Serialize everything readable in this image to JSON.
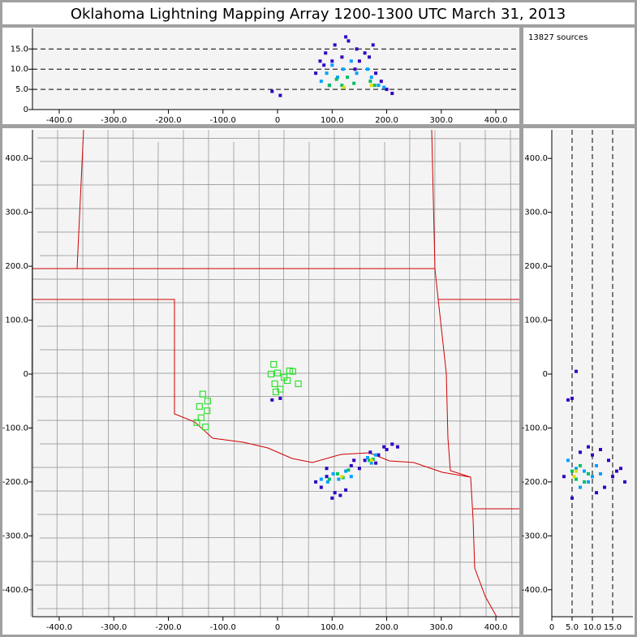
{
  "title": "Oklahoma Lightning Mapping Array   1200-1300 UTC  March 31, 2013",
  "annotation": "13827 sources",
  "chart_data": [
    {
      "type": "scatter",
      "xlim": [
        -449,
        443
      ],
      "ylim": [
        0,
        20.1
      ],
      "xticks": [
        {
          "value": -400,
          "label": "-400.0"
        },
        {
          "value": -300,
          "label": "-300.0"
        },
        {
          "value": -200,
          "label": "-200.0"
        },
        {
          "value": -100,
          "label": "-100.0"
        },
        0,
        {
          "value": 100,
          "label": "100.0"
        },
        {
          "value": 200,
          "label": "200.0"
        },
        {
          "value": 300,
          "label": "300.0"
        },
        {
          "value": 400,
          "label": "400.0"
        }
      ],
      "yticks": [
        0,
        {
          "value": 5,
          "label": "5.0"
        },
        {
          "value": 10,
          "label": "10.0"
        },
        {
          "value": 15,
          "label": "15.0"
        }
      ],
      "grid": "dashed",
      "series": [
        {
          "color": "#3000c0",
          "x": [
            -10,
            5,
            70,
            78,
            88,
            95,
            105,
            118,
            130,
            142,
            150,
            160,
            168,
            180,
            190,
            200,
            210,
            125,
            145,
            85,
            175,
            100
          ],
          "values": [
            4.5,
            3.5,
            9,
            12,
            14,
            6,
            16,
            13,
            17,
            10,
            12,
            14,
            13,
            9,
            7,
            5,
            4,
            18,
            15,
            11,
            16,
            12
          ]
        },
        {
          "color": "#00a0ff",
          "x": [
            80,
            90,
            100,
            110,
            120,
            135,
            145,
            165,
            172,
            185,
            195
          ],
          "values": [
            7,
            9,
            11,
            8,
            10,
            12,
            9,
            10,
            8,
            6,
            5.5
          ]
        },
        {
          "color": "#00c060",
          "x": [
            95,
            108,
            118,
            128,
            140,
            170,
            178
          ],
          "values": [
            6,
            7.5,
            6,
            8,
            6.5,
            7,
            6
          ]
        },
        {
          "color": "#e0e000",
          "x": [
            122,
            172
          ],
          "values": [
            5.5,
            6
          ]
        }
      ]
    },
    {
      "type": "scatter",
      "xlim": [
        -449,
        443
      ],
      "ylim": [
        -450,
        453
      ],
      "xticks": [
        {
          "value": -400,
          "label": "-400.0"
        },
        {
          "value": -300,
          "label": "-300.0"
        },
        {
          "value": -200,
          "label": "-200.0"
        },
        {
          "value": -100,
          "label": "-100.0"
        },
        0,
        {
          "value": 100,
          "label": "100.0"
        },
        {
          "value": 200,
          "label": "200.0"
        },
        {
          "value": 300,
          "label": "300.0"
        },
        {
          "value": 400,
          "label": "400.0"
        }
      ],
      "yticks": [
        {
          "value": -400,
          "label": "-400.0"
        },
        {
          "value": -300,
          "label": "-300.0"
        },
        {
          "value": -200,
          "label": "-200.0"
        },
        {
          "value": -100,
          "label": "-100.0"
        },
        0,
        {
          "value": 100,
          "label": "100.0"
        },
        {
          "value": 200,
          "label": "200.0"
        },
        {
          "value": 300,
          "label": "300.0"
        },
        {
          "value": 400,
          "label": "400.0"
        }
      ],
      "series": [
        {
          "color": "#3000c0",
          "x": [
            -10,
            5,
            70,
            80,
            90,
            105,
            115,
            135,
            150,
            160,
            170,
            185,
            195,
            210,
            220,
            100,
            125,
            140,
            180,
            90,
            200
          ],
          "values": [
            -48,
            -45,
            -200,
            -210,
            -190,
            -220,
            -225,
            -170,
            -175,
            -160,
            -145,
            -150,
            -135,
            -130,
            -135,
            -230,
            -215,
            -160,
            -165,
            -175,
            -140
          ]
        },
        {
          "color": "#00a0ff",
          "x": [
            80,
            92,
            102,
            112,
            125,
            135,
            165,
            172,
            180
          ],
          "values": [
            -195,
            -200,
            -185,
            -195,
            -180,
            -190,
            -155,
            -165,
            -150
          ]
        },
        {
          "color": "#00c060",
          "x": [
            95,
            110,
            120,
            130,
            168,
            175
          ],
          "values": [
            -195,
            -185,
            -192,
            -178,
            -160,
            -158
          ]
        },
        {
          "color": "#e0e000",
          "x": [
            118,
            172
          ],
          "values": [
            -190,
            -160
          ]
        },
        {
          "color": "#30e030",
          "marker": "square",
          "x": [
            -7,
            -12,
            0,
            12,
            28,
            -5,
            18,
            38,
            5,
            -3,
            22,
            -137,
            -143,
            -128,
            -140,
            -129,
            -132,
            -148
          ],
          "values": [
            18,
            0,
            2,
            -6,
            5,
            -18,
            -12,
            -18,
            -28,
            -33,
            6,
            -37,
            -60,
            -50,
            -81,
            -68,
            -98,
            -90
          ]
        }
      ]
    },
    {
      "type": "scatter",
      "xlim": [
        0,
        20
      ],
      "ylim": [
        -450,
        453
      ],
      "xticks": [
        0,
        {
          "value": 5,
          "label": "5.0"
        },
        {
          "value": 10,
          "label": "10.0"
        },
        {
          "value": 15,
          "label": "15.0"
        }
      ],
      "yticks": [
        {
          "value": -400,
          "label": "-400.0"
        },
        {
          "value": -300,
          "label": "-300.0"
        },
        {
          "value": -200,
          "label": "-200.0"
        },
        {
          "value": -100,
          "label": "-100.0"
        },
        0,
        {
          "value": 100,
          "label": "100.0"
        },
        {
          "value": 200,
          "label": "200.0"
        },
        {
          "value": 300,
          "label": "300.0"
        },
        {
          "value": 400,
          "label": "400.0"
        }
      ],
      "grid": "dashed",
      "series": [
        {
          "color": "#3000c0",
          "x": [
            4,
            5,
            6,
            3,
            12,
            14,
            16,
            18,
            9,
            11,
            13,
            15,
            5,
            7,
            10,
            17
          ],
          "values": [
            -48,
            -45,
            5,
            -190,
            -140,
            -160,
            -180,
            -200,
            -135,
            -220,
            -210,
            -190,
            -230,
            -145,
            -150,
            -175
          ]
        },
        {
          "color": "#00a0ff",
          "x": [
            4,
            6,
            8,
            10,
            12,
            9,
            7,
            11
          ],
          "values": [
            -160,
            -175,
            -180,
            -190,
            -185,
            -200,
            -210,
            -170
          ]
        },
        {
          "color": "#00c060",
          "x": [
            5,
            6,
            7,
            8,
            9
          ],
          "values": [
            -180,
            -195,
            -170,
            -200,
            -185
          ]
        },
        {
          "color": "#e0e000",
          "x": [
            5.5,
            6
          ],
          "values": [
            -190,
            -180
          ]
        }
      ]
    }
  ]
}
